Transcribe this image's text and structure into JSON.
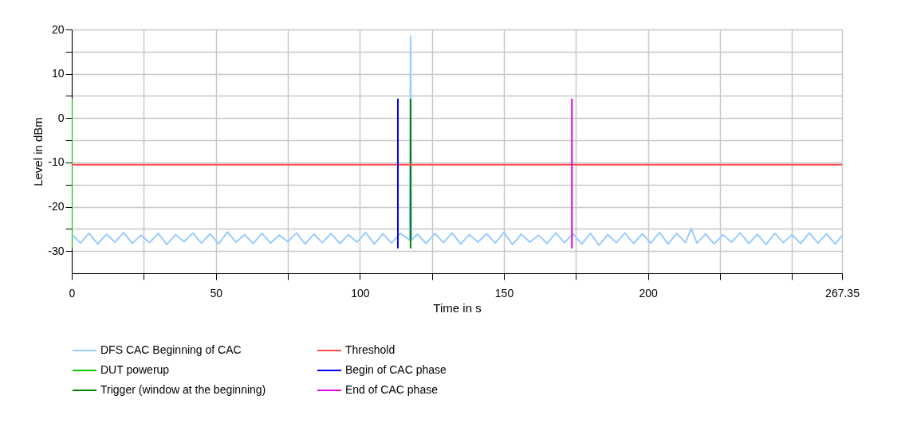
{
  "chart_data": {
    "type": "line",
    "xlabel": "Time in s",
    "ylabel": "Level in dBm",
    "xlim": [
      0,
      267.35
    ],
    "ylim": [
      -35,
      20
    ],
    "xticks": [
      0,
      {
        "value": 25,
        "label": null
      },
      50,
      {
        "value": 75,
        "label": null
      },
      100,
      {
        "value": 125,
        "label": null
      },
      150,
      {
        "value": 175,
        "label": null
      },
      200,
      {
        "value": 225,
        "label": null
      },
      {
        "value": 250,
        "label": null
      },
      267.35
    ],
    "yticks": [
      -30,
      {
        "value": -25,
        "label": null
      },
      -20,
      {
        "value": -15,
        "label": null
      },
      -10,
      {
        "value": -5,
        "label": null
      },
      0,
      {
        "value": 5,
        "label": null
      },
      10,
      {
        "value": 15,
        "label": null
      },
      20
    ],
    "grid": true,
    "legend": "bottom",
    "series": [
      {
        "name": "DFS CAC Beginning of CAC",
        "color": "#99ccff",
        "x": [
          0.5,
          3,
          6,
          9,
          12,
          15,
          18,
          21,
          24,
          27,
          30,
          33,
          36,
          39,
          42,
          45,
          48,
          51,
          54,
          57,
          60,
          63,
          66,
          69,
          72,
          75,
          78,
          81,
          84,
          87,
          90,
          93,
          96,
          99,
          102,
          105,
          108,
          111,
          114,
          117.3,
          117.6,
          117.9,
          120,
          123,
          126,
          129,
          132,
          135,
          138,
          141,
          144,
          147,
          150,
          153,
          156,
          159,
          162,
          165,
          168,
          171,
          174,
          177,
          180,
          183,
          186,
          189,
          192,
          195,
          198,
          201,
          204,
          207,
          210,
          213,
          215,
          217,
          220,
          223,
          226,
          229,
          232,
          235,
          238,
          241,
          244,
          247,
          250,
          253,
          256,
          259,
          262,
          265,
          267.35
        ],
        "values": [
          -26.5,
          -28.2,
          -26,
          -28.4,
          -26.2,
          -28,
          -25.8,
          -28.3,
          -26.4,
          -28.1,
          -26,
          -28.5,
          -26.3,
          -27.9,
          -25.9,
          -28.2,
          -26.1,
          -28.4,
          -25.7,
          -28,
          -26.3,
          -28.3,
          -26,
          -28.2,
          -26.4,
          -27.9,
          -25.9,
          -28.4,
          -26.2,
          -28.1,
          -26,
          -28.3,
          -26.3,
          -28,
          -25.8,
          -28.4,
          -26.1,
          -28.2,
          -26,
          -27.5,
          18.5,
          -27.5,
          -26.2,
          -28.3,
          -26,
          -28.1,
          -25.9,
          -28.4,
          -26.3,
          -28,
          -26.1,
          -28.2,
          -25.8,
          -28.5,
          -26.2,
          -28,
          -26.4,
          -28.3,
          -25.9,
          -28.1,
          -26.1,
          -28.4,
          -26,
          -28.7,
          -26.3,
          -28.1,
          -25.9,
          -28.3,
          -26.1,
          -28.2,
          -25.8,
          -28.4,
          -26,
          -28.1,
          -24.9,
          -28.2,
          -26.1,
          -28.4,
          -26.3,
          -28,
          -25.9,
          -28.3,
          -26.2,
          -28.5,
          -26,
          -28.1,
          -26.3,
          -28.3,
          -25.9,
          -28.2,
          -26.1,
          -28.4,
          -26.5
        ]
      },
      {
        "name": "DUT powerup",
        "color": "#00cc00",
        "x": [
          0,
          0
        ],
        "values": [
          4.4,
          -29.4
        ]
      },
      {
        "name": "Trigger (window at the beginning)",
        "color": "#008000",
        "x": [
          117.6,
          117.6
        ],
        "values": [
          4.4,
          -29.4
        ]
      },
      {
        "name": "Threshold",
        "color": "#ff4d4d",
        "x": [
          0,
          267.35
        ],
        "values": [
          -10.5,
          -10.5
        ]
      },
      {
        "name": "Begin of CAC phase",
        "color": "#0000ff",
        "x": [
          113.2,
          113.2
        ],
        "values": [
          4.4,
          -29.4
        ]
      },
      {
        "name": "End of CAC phase",
        "color": "#e600e6",
        "x": [
          173.6,
          173.6
        ],
        "values": [
          4.4,
          -29.4
        ]
      }
    ]
  }
}
